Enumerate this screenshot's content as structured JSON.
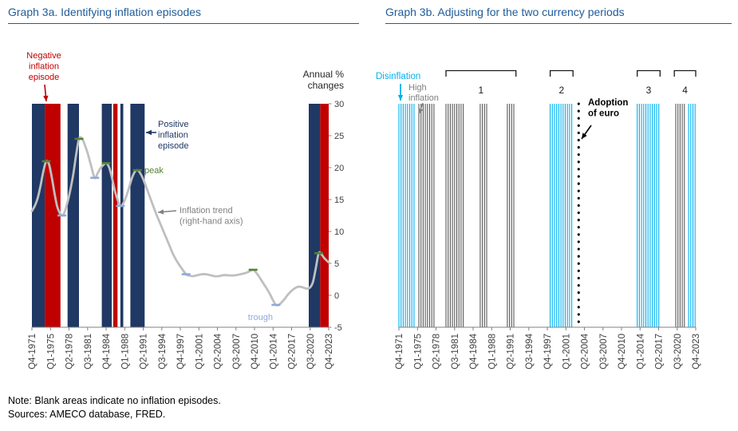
{
  "header": {
    "left_title": "Graph 3a. Identifying inflation episodes",
    "right_title": "Graph 3b. Adjusting for the two currency periods",
    "title_color": "#1F5C99"
  },
  "footer": {
    "note": "Note: Blank areas indicate no inflation episodes.",
    "sources": "Sources: AMECO database, FRED."
  },
  "chart_data": [
    {
      "id": "graph-3a",
      "type": "bar+line",
      "title": "Graph 3a. Identifying inflation episodes",
      "x_max": 208,
      "tick_step": 13,
      "x_ticks": [
        "Q4-1971",
        "Q1-1975",
        "Q2-1978",
        "Q3-1981",
        "Q4-1984",
        "Q1-1988",
        "Q2-1991",
        "Q3-1994",
        "Q4-1997",
        "Q1-2001",
        "Q2-2004",
        "Q3-2007",
        "Q4-2010",
        "Q1-2014",
        "Q2-2017",
        "Q3-2020",
        "Q4-2023"
      ],
      "y_axis": {
        "side": "right",
        "range": [
          -5,
          30
        ],
        "ticks": [
          30,
          25,
          20,
          15,
          10,
          5,
          0,
          -5
        ]
      },
      "colors": {
        "positive": "#1F3864",
        "negative": "#C00000",
        "trend": "#BFBFBF",
        "peak": "#538135",
        "trough": "#8FAADC",
        "axis_text": "#404040"
      },
      "episodes": [
        {
          "type": "positive",
          "start": 0,
          "end": 9
        },
        {
          "type": "negative",
          "start": 9,
          "end": 20
        },
        {
          "type": "positive",
          "start": 25,
          "end": 33
        },
        {
          "type": "positive",
          "start": 49,
          "end": 56
        },
        {
          "type": "negative",
          "start": 57,
          "end": 60
        },
        {
          "type": "positive",
          "start": 62,
          "end": 64
        },
        {
          "type": "positive",
          "start": 69,
          "end": 79
        },
        {
          "type": "positive",
          "start": 194,
          "end": 202
        },
        {
          "type": "negative",
          "start": 202,
          "end": 208
        }
      ],
      "trend": [
        [
          0,
          13.2
        ],
        [
          2,
          14
        ],
        [
          4,
          15.2
        ],
        [
          6,
          17.1
        ],
        [
          8,
          19.4
        ],
        [
          10,
          21
        ],
        [
          12,
          20.5
        ],
        [
          14,
          18.4
        ],
        [
          16,
          15.8
        ],
        [
          18,
          13.7
        ],
        [
          21,
          12.5
        ],
        [
          23,
          13.1
        ],
        [
          25,
          14.6
        ],
        [
          27,
          16.6
        ],
        [
          29,
          19
        ],
        [
          31,
          22
        ],
        [
          33,
          24.5
        ],
        [
          35,
          24.6
        ],
        [
          37,
          23.6
        ],
        [
          39,
          22.3
        ],
        [
          41,
          20.7
        ],
        [
          44,
          18.4
        ],
        [
          46,
          19.1
        ],
        [
          48,
          19.9
        ],
        [
          50,
          20.4
        ],
        [
          52,
          20.7
        ],
        [
          54,
          20.1
        ],
        [
          56,
          18.5
        ],
        [
          58,
          16.5
        ],
        [
          60,
          15
        ],
        [
          62,
          14
        ],
        [
          64,
          14.4
        ],
        [
          66,
          15.4
        ],
        [
          68,
          16.8
        ],
        [
          70,
          18.3
        ],
        [
          72,
          19.3
        ],
        [
          74,
          19.6
        ],
        [
          76,
          19.1
        ],
        [
          78,
          18.2
        ],
        [
          81,
          16.4
        ],
        [
          84,
          14.6
        ],
        [
          87,
          12.8
        ],
        [
          90,
          11.2
        ],
        [
          93,
          9.6
        ],
        [
          96,
          8
        ],
        [
          99,
          6.4
        ],
        [
          102,
          5.2
        ],
        [
          105,
          4.2
        ],
        [
          108,
          3.3
        ],
        [
          110,
          3.1
        ],
        [
          113,
          3
        ],
        [
          116,
          3.15
        ],
        [
          119,
          3.3
        ],
        [
          122,
          3.3
        ],
        [
          125,
          3.15
        ],
        [
          128,
          3
        ],
        [
          131,
          3
        ],
        [
          134,
          3.15
        ],
        [
          137,
          3.15
        ],
        [
          140,
          3.1
        ],
        [
          143,
          3.15
        ],
        [
          146,
          3.3
        ],
        [
          149,
          3.45
        ],
        [
          152,
          3.7
        ],
        [
          155,
          4
        ],
        [
          157,
          3.6
        ],
        [
          159,
          3
        ],
        [
          161,
          2.3
        ],
        [
          163,
          1.6
        ],
        [
          165,
          0.9
        ],
        [
          167,
          0.1
        ],
        [
          169,
          -0.8
        ],
        [
          171,
          -1.5
        ],
        [
          173,
          -1.5
        ],
        [
          175,
          -1.1
        ],
        [
          177,
          -0.6
        ],
        [
          179,
          0
        ],
        [
          181,
          0.5
        ],
        [
          183,
          0.9
        ],
        [
          185,
          1.2
        ],
        [
          187,
          1.35
        ],
        [
          189,
          1.3
        ],
        [
          191,
          1.15
        ],
        [
          193,
          1.05
        ],
        [
          195,
          1.25
        ],
        [
          197,
          2.1
        ],
        [
          199,
          4.3
        ],
        [
          201,
          6.6
        ],
        [
          203,
          6.4
        ],
        [
          205,
          5.8
        ],
        [
          208,
          5.15
        ]
      ],
      "peaks": [
        [
          10,
          21
        ],
        [
          33,
          24.5
        ],
        [
          52,
          20.7
        ],
        [
          74,
          19.6
        ],
        [
          155,
          4
        ],
        [
          201,
          6.6
        ]
      ],
      "troughs": [
        [
          21,
          12.5
        ],
        [
          44,
          18.4
        ],
        [
          62,
          14
        ],
        [
          108,
          3.3
        ],
        [
          171,
          -1.5
        ]
      ],
      "annotations": {
        "negative_episode": {
          "text": "Negative\ninflation\nepisode",
          "color": "#C00000"
        },
        "positive_episode": {
          "text": "Positive\ninflation\nepisode",
          "color": "#1F3864"
        },
        "peak": {
          "text": "peak",
          "color": "#538135"
        },
        "trend_label": {
          "text": "Inflation trend\n(right-hand axis)",
          "color": "#808080"
        },
        "trough": {
          "text": "trough",
          "color": "#8FAADC"
        },
        "axis_title": {
          "text": "Annual %\nchanges",
          "color": "#262626"
        }
      }
    },
    {
      "id": "graph-3b",
      "type": "episode-timeline",
      "title": "Graph 3b. Adjusting for the two currency periods",
      "x_max": 208,
      "tick_step": 13,
      "x_ticks": [
        "Q4-1971",
        "Q1-1975",
        "Q2-1978",
        "Q3-1981",
        "Q4-1984",
        "Q1-1988",
        "Q2-1991",
        "Q3-1994",
        "Q4-1997",
        "Q1-2001",
        "Q2-2004",
        "Q3-2007",
        "Q4-2010",
        "Q1-2014",
        "Q2-2017",
        "Q3-2020",
        "Q4-2023"
      ],
      "colors": {
        "disinflation": "#00B0F0",
        "high_inflation": "#595959",
        "axis_text": "#404040"
      },
      "groups": [
        {
          "kind": "disinflation",
          "start": 0,
          "end": 11
        },
        {
          "kind": "high",
          "start": 14,
          "end": 26
        },
        {
          "kind": "high",
          "start": 33,
          "end": 46
        },
        {
          "kind": "high",
          "start": 57,
          "end": 63
        },
        {
          "kind": "high",
          "start": 76,
          "end": 82
        },
        {
          "kind": "disinflation",
          "start": 106,
          "end": 122
        },
        {
          "kind": "disinflation",
          "start": 167,
          "end": 183
        },
        {
          "kind": "high",
          "start": 194,
          "end": 201
        },
        {
          "kind": "disinflation",
          "start": 203,
          "end": 208
        }
      ],
      "brackets": [
        {
          "label": "1",
          "start": 33,
          "end": 82
        },
        {
          "label": "2",
          "start": 106,
          "end": 122
        },
        {
          "label": "3",
          "start": 167,
          "end": 183
        },
        {
          "label": "4",
          "start": 193,
          "end": 208
        }
      ],
      "euro_line_q": 126,
      "annotations": {
        "disinflation": {
          "text": "Disinflation",
          "color": "#00B0F0"
        },
        "high_inflation": {
          "text": "High\ninflation",
          "color": "#808080"
        },
        "euro": {
          "text": "Adoption\nof euro",
          "color": "#000000"
        }
      }
    }
  ]
}
